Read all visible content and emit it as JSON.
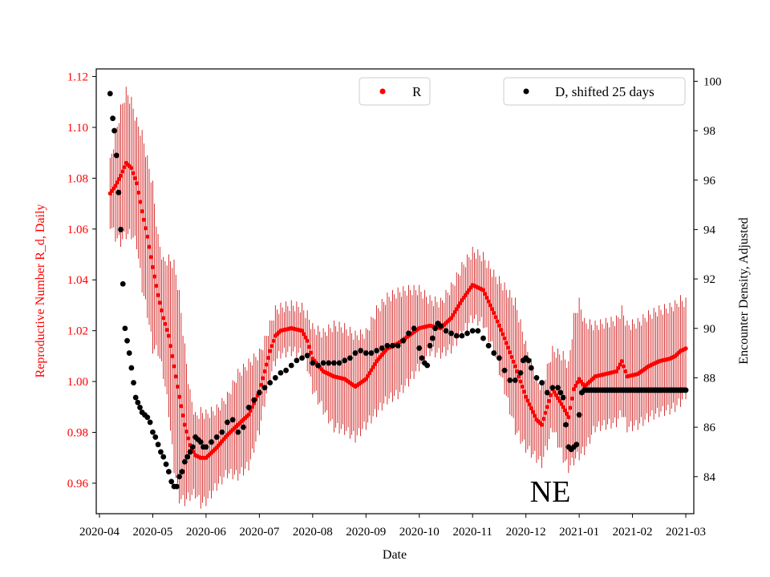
{
  "chart_data": {
    "type": "scatter",
    "region_label": "NE",
    "xlabel": "Date",
    "x_ticks": [
      "2020-04",
      "2020-05",
      "2020-06",
      "2020-07",
      "2020-08",
      "2020-09",
      "2020-10",
      "2020-11",
      "2020-12",
      "2021-01",
      "2021-02",
      "2021-03"
    ],
    "x_range_months": [
      -0.06,
      11.15
    ],
    "left_axis": {
      "label": "Reproductive Number R_d, Daily",
      "color": "#ff0000",
      "range": [
        0.948,
        1.123
      ],
      "ticks": [
        "0.96",
        "0.98",
        "1.00",
        "1.02",
        "1.04",
        "1.06",
        "1.08",
        "1.10",
        "1.12"
      ]
    },
    "right_axis": {
      "label": "Encounter Density, Adjusted",
      "color": "#000000",
      "range": [
        82.5,
        100.5
      ],
      "ticks": [
        "84",
        "86",
        "88",
        "90",
        "92",
        "94",
        "96",
        "98",
        "100"
      ]
    },
    "series": [
      {
        "name": "R",
        "legend": "R",
        "axis": "left",
        "color": "#ff0000",
        "errorbar_color": "#cc0000",
        "marker": "dot",
        "points_month_value_err": [
          [
            0.2,
            1.074,
            0.012
          ],
          [
            0.3,
            1.077,
            0.02
          ],
          [
            0.4,
            1.081,
            0.026
          ],
          [
            0.5,
            1.086,
            0.028
          ],
          [
            0.6,
            1.084,
            0.026
          ],
          [
            0.7,
            1.078,
            0.024
          ],
          [
            0.8,
            1.067,
            0.03
          ],
          [
            0.9,
            1.057,
            0.03
          ],
          [
            1.0,
            1.045,
            0.032
          ],
          [
            1.1,
            1.034,
            0.022
          ],
          [
            1.2,
            1.025,
            0.022
          ],
          [
            1.3,
            1.018,
            0.03
          ],
          [
            1.4,
            1.006,
            0.04
          ],
          [
            1.5,
            0.994,
            0.04
          ],
          [
            1.6,
            0.983,
            0.03
          ],
          [
            1.7,
            0.975,
            0.02
          ],
          [
            1.8,
            0.971,
            0.015
          ],
          [
            1.9,
            0.97,
            0.018
          ],
          [
            2.0,
            0.97,
            0.017
          ],
          [
            2.2,
            0.974,
            0.015
          ],
          [
            2.4,
            0.979,
            0.015
          ],
          [
            2.6,
            0.983,
            0.02
          ],
          [
            2.8,
            0.987,
            0.02
          ],
          [
            3.0,
            0.996,
            0.015
          ],
          [
            3.1,
            1.004,
            0.012
          ],
          [
            3.2,
            1.012,
            0.01
          ],
          [
            3.3,
            1.018,
            0.01
          ],
          [
            3.4,
            1.02,
            0.009
          ],
          [
            3.6,
            1.021,
            0.009
          ],
          [
            3.8,
            1.02,
            0.009
          ],
          [
            3.9,
            1.016,
            0.01
          ],
          [
            4.0,
            1.009,
            0.012
          ],
          [
            4.2,
            1.004,
            0.015
          ],
          [
            4.4,
            1.002,
            0.02
          ],
          [
            4.6,
            1.001,
            0.02
          ],
          [
            4.8,
            0.998,
            0.02
          ],
          [
            5.0,
            1.001,
            0.018
          ],
          [
            5.2,
            1.008,
            0.02
          ],
          [
            5.4,
            1.013,
            0.02
          ],
          [
            5.6,
            1.015,
            0.02
          ],
          [
            5.8,
            1.018,
            0.018
          ],
          [
            6.0,
            1.021,
            0.015
          ],
          [
            6.2,
            1.022,
            0.01
          ],
          [
            6.4,
            1.021,
            0.01
          ],
          [
            6.6,
            1.025,
            0.012
          ],
          [
            6.8,
            1.032,
            0.013
          ],
          [
            7.0,
            1.038,
            0.013
          ],
          [
            7.2,
            1.036,
            0.013
          ],
          [
            7.4,
            1.027,
            0.015
          ],
          [
            7.6,
            1.017,
            0.02
          ],
          [
            7.8,
            1.006,
            0.025
          ],
          [
            8.0,
            0.994,
            0.02
          ],
          [
            8.2,
            0.985,
            0.015
          ],
          [
            8.3,
            0.983,
            0.015
          ],
          [
            8.5,
            0.997,
            0.015
          ],
          [
            8.7,
            0.99,
            0.02
          ],
          [
            8.8,
            0.986,
            0.02
          ],
          [
            8.9,
            0.997,
            0.028
          ],
          [
            9.0,
            1.001,
            0.03
          ],
          [
            9.1,
            0.998,
            0.025
          ],
          [
            9.3,
            1.002,
            0.02
          ],
          [
            9.5,
            1.003,
            0.02
          ],
          [
            9.7,
            1.004,
            0.02
          ],
          [
            9.8,
            1.008,
            0.02
          ],
          [
            9.9,
            1.002,
            0.02
          ],
          [
            10.1,
            1.003,
            0.02
          ],
          [
            10.3,
            1.006,
            0.02
          ],
          [
            10.5,
            1.008,
            0.02
          ],
          [
            10.7,
            1.009,
            0.02
          ],
          [
            10.8,
            1.01,
            0.02
          ],
          [
            10.9,
            1.012,
            0.02
          ],
          [
            11.0,
            1.013,
            0.018
          ]
        ]
      },
      {
        "name": "D",
        "legend": "D, shifted 25 days",
        "axis": "right",
        "color": "#000000",
        "marker": "dot",
        "points_month_value": [
          [
            0.2,
            99.5
          ],
          [
            0.25,
            98.5
          ],
          [
            0.28,
            98.0
          ],
          [
            0.32,
            97.0
          ],
          [
            0.36,
            95.5
          ],
          [
            0.4,
            94.0
          ],
          [
            0.44,
            91.8
          ],
          [
            0.48,
            90.0
          ],
          [
            0.52,
            89.5
          ],
          [
            0.56,
            89.0
          ],
          [
            0.6,
            88.4
          ],
          [
            0.64,
            87.8
          ],
          [
            0.68,
            87.2
          ],
          [
            0.72,
            87.0
          ],
          [
            0.76,
            86.8
          ],
          [
            0.8,
            86.6
          ],
          [
            0.85,
            86.5
          ],
          [
            0.9,
            86.4
          ],
          [
            0.95,
            86.2
          ],
          [
            1.0,
            85.8
          ],
          [
            1.05,
            85.6
          ],
          [
            1.1,
            85.3
          ],
          [
            1.15,
            85.0
          ],
          [
            1.2,
            84.8
          ],
          [
            1.25,
            84.5
          ],
          [
            1.3,
            84.2
          ],
          [
            1.35,
            83.8
          ],
          [
            1.4,
            83.6
          ],
          [
            1.45,
            83.6
          ],
          [
            1.5,
            84.0
          ],
          [
            1.55,
            84.2
          ],
          [
            1.6,
            84.6
          ],
          [
            1.65,
            84.8
          ],
          [
            1.7,
            85.0
          ],
          [
            1.75,
            85.2
          ],
          [
            1.8,
            85.6
          ],
          [
            1.85,
            85.5
          ],
          [
            1.9,
            85.4
          ],
          [
            1.95,
            85.2
          ],
          [
            2.0,
            85.2
          ],
          [
            2.1,
            85.4
          ],
          [
            2.2,
            85.6
          ],
          [
            2.3,
            85.8
          ],
          [
            2.4,
            86.2
          ],
          [
            2.5,
            86.3
          ],
          [
            2.6,
            85.8
          ],
          [
            2.7,
            86.0
          ],
          [
            2.8,
            86.8
          ],
          [
            2.9,
            87.1
          ],
          [
            3.0,
            87.4
          ],
          [
            3.1,
            87.6
          ],
          [
            3.2,
            87.8
          ],
          [
            3.3,
            88.0
          ],
          [
            3.4,
            88.2
          ],
          [
            3.5,
            88.3
          ],
          [
            3.6,
            88.5
          ],
          [
            3.7,
            88.7
          ],
          [
            3.8,
            88.8
          ],
          [
            3.9,
            88.9
          ],
          [
            4.0,
            88.6
          ],
          [
            4.1,
            88.5
          ],
          [
            4.2,
            88.6
          ],
          [
            4.3,
            88.6
          ],
          [
            4.4,
            88.6
          ],
          [
            4.5,
            88.6
          ],
          [
            4.6,
            88.7
          ],
          [
            4.7,
            88.8
          ],
          [
            4.8,
            89.0
          ],
          [
            4.9,
            89.1
          ],
          [
            5.0,
            89.0
          ],
          [
            5.1,
            89.0
          ],
          [
            5.2,
            89.1
          ],
          [
            5.3,
            89.2
          ],
          [
            5.4,
            89.3
          ],
          [
            5.5,
            89.3
          ],
          [
            5.6,
            89.3
          ],
          [
            5.7,
            89.5
          ],
          [
            5.8,
            89.8
          ],
          [
            5.9,
            90.0
          ],
          [
            6.0,
            89.2
          ],
          [
            6.05,
            88.8
          ],
          [
            6.1,
            88.6
          ],
          [
            6.15,
            88.5
          ],
          [
            6.2,
            89.3
          ],
          [
            6.25,
            89.6
          ],
          [
            6.3,
            90.0
          ],
          [
            6.35,
            90.2
          ],
          [
            6.4,
            90.1
          ],
          [
            6.5,
            89.9
          ],
          [
            6.6,
            89.8
          ],
          [
            6.7,
            89.7
          ],
          [
            6.8,
            89.7
          ],
          [
            6.9,
            89.8
          ],
          [
            7.0,
            89.9
          ],
          [
            7.1,
            89.9
          ],
          [
            7.2,
            89.6
          ],
          [
            7.3,
            89.3
          ],
          [
            7.4,
            89.0
          ],
          [
            7.5,
            88.8
          ],
          [
            7.6,
            88.3
          ],
          [
            7.7,
            87.9
          ],
          [
            7.8,
            87.9
          ],
          [
            7.9,
            88.2
          ],
          [
            7.95,
            88.7
          ],
          [
            8.0,
            88.8
          ],
          [
            8.05,
            88.7
          ],
          [
            8.1,
            88.4
          ],
          [
            8.2,
            88.0
          ],
          [
            8.3,
            87.8
          ],
          [
            8.4,
            87.4
          ],
          [
            8.5,
            87.6
          ],
          [
            8.6,
            87.6
          ],
          [
            8.65,
            87.4
          ],
          [
            8.7,
            87.2
          ],
          [
            8.75,
            86.1
          ],
          [
            8.8,
            85.2
          ],
          [
            8.85,
            85.1
          ],
          [
            8.9,
            85.2
          ],
          [
            8.95,
            85.3
          ],
          [
            9.0,
            86.5
          ],
          [
            9.05,
            87.4
          ],
          [
            9.1,
            87.5
          ],
          [
            9.3,
            87.5
          ],
          [
            9.5,
            87.5
          ],
          [
            9.7,
            87.5
          ],
          [
            9.9,
            87.5
          ],
          [
            10.1,
            87.5
          ],
          [
            10.3,
            87.5
          ],
          [
            10.5,
            87.5
          ],
          [
            10.7,
            87.5
          ],
          [
            10.9,
            87.5
          ],
          [
            11.0,
            87.5
          ]
        ]
      }
    ]
  }
}
